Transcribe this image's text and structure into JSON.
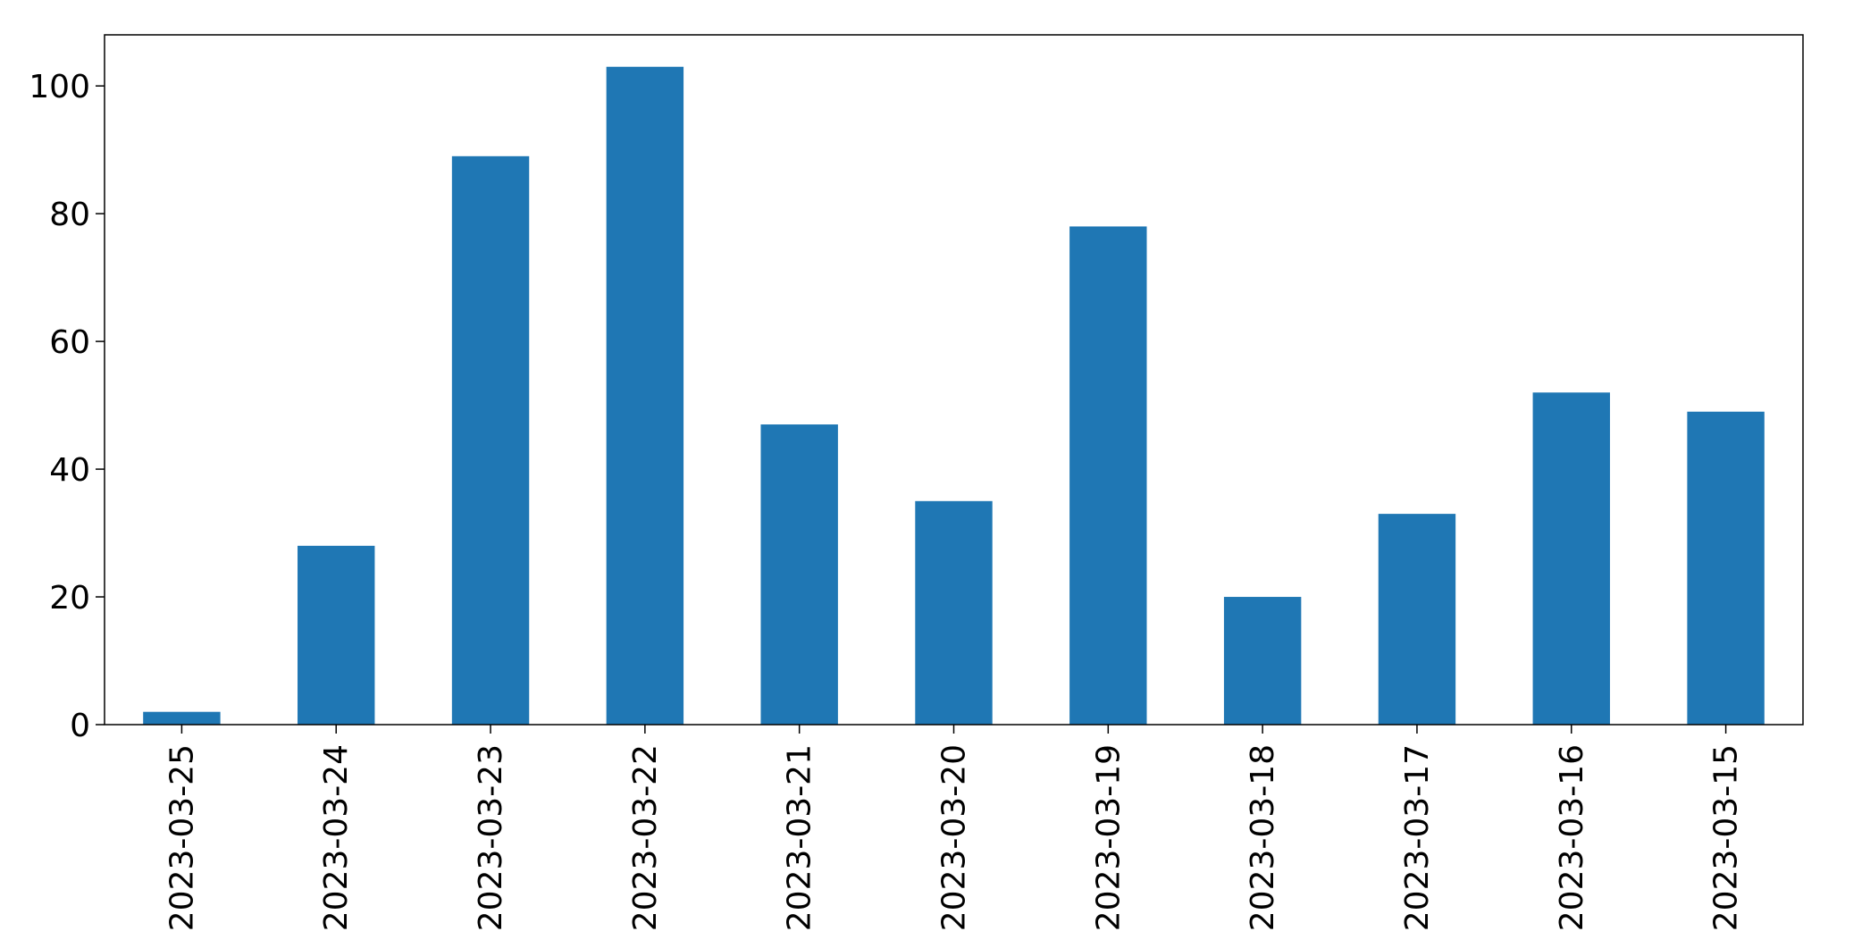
{
  "chart_data": {
    "type": "bar",
    "categories": [
      "2023-03-25",
      "2023-03-24",
      "2023-03-23",
      "2023-03-22",
      "2023-03-21",
      "2023-03-20",
      "2023-03-19",
      "2023-03-18",
      "2023-03-17",
      "2023-03-16",
      "2023-03-15"
    ],
    "values": [
      2,
      28,
      89,
      103,
      47,
      35,
      78,
      20,
      33,
      52,
      49
    ],
    "ylim": [
      0,
      108
    ],
    "yticks": [
      0,
      20,
      40,
      60,
      80,
      100
    ],
    "xlabel": "",
    "ylabel": "",
    "title": "",
    "grid": false,
    "legend": "none",
    "bar_color": "#1f77b4"
  }
}
